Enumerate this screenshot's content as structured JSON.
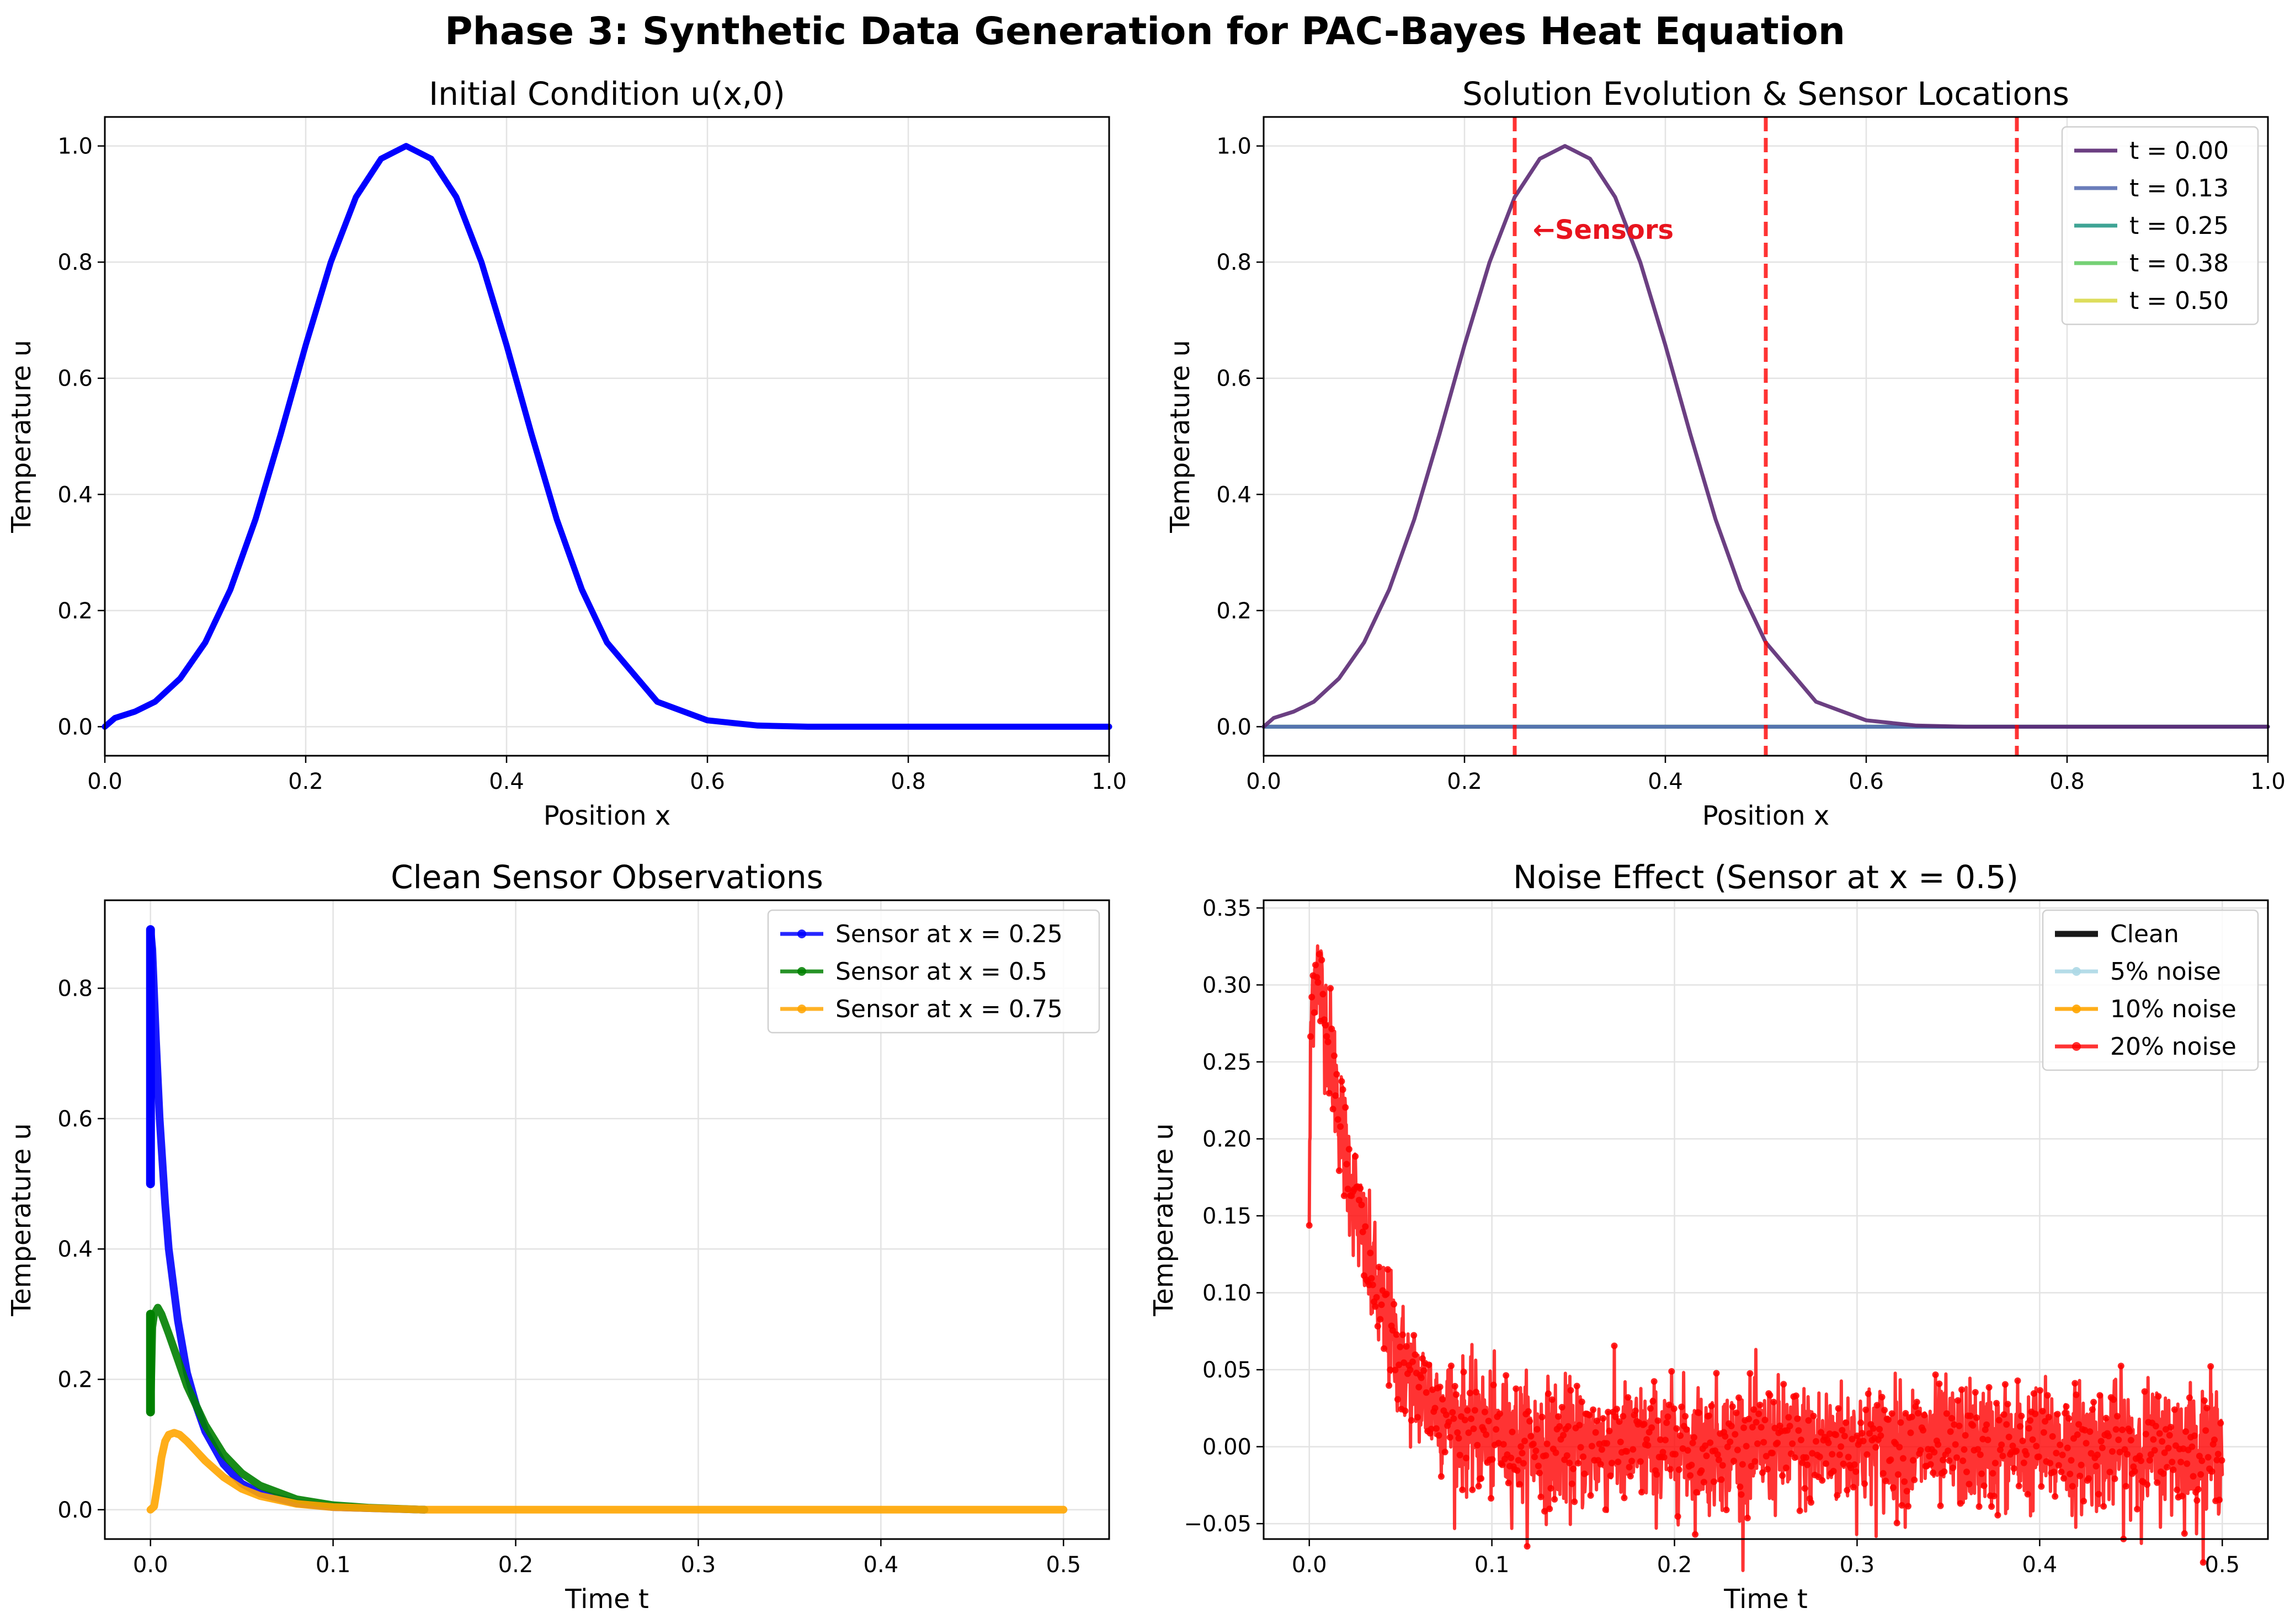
{
  "figure": {
    "title": "Phase 3: Synthetic Data Generation for PAC-Bayes Heat Equation"
  },
  "chart_data": [
    {
      "type": "line",
      "title": "Initial Condition u(x,0)",
      "xlabel": "Position x",
      "ylabel": "Temperature u",
      "xlim": [
        0,
        1
      ],
      "ylim": [
        -0.05,
        1.05
      ],
      "xticks": [
        "0.0",
        "0.2",
        "0.4",
        "0.6",
        "0.8",
        "1.0"
      ],
      "yticks": [
        "0.0",
        "0.2",
        "0.4",
        "0.6",
        "0.8",
        "1.0"
      ],
      "grid": true,
      "series": [
        {
          "color": "#0000ff",
          "x": [
            0,
            0.01,
            0.03,
            0.05,
            0.075,
            0.1,
            0.125,
            0.15,
            0.175,
            0.2,
            0.225,
            0.25,
            0.275,
            0.3,
            0.325,
            0.35,
            0.375,
            0.4,
            0.425,
            0.45,
            0.475,
            0.5,
            0.55,
            0.6,
            0.65,
            0.7,
            0.8,
            0.9,
            1.0
          ],
          "y": [
            0.0,
            0.015,
            0.026,
            0.043,
            0.083,
            0.145,
            0.236,
            0.357,
            0.503,
            0.657,
            0.8,
            0.912,
            0.978,
            1.0,
            0.978,
            0.912,
            0.8,
            0.657,
            0.503,
            0.357,
            0.236,
            0.145,
            0.043,
            0.011,
            0.002,
            0.0,
            0.0,
            0.0,
            0.0
          ]
        }
      ]
    },
    {
      "type": "line",
      "title": "Solution Evolution & Sensor Locations",
      "xlabel": "Position x",
      "ylabel": "Temperature u",
      "xlim": [
        0,
        1
      ],
      "ylim": [
        -0.05,
        1.05
      ],
      "xticks": [
        "0.0",
        "0.2",
        "0.4",
        "0.6",
        "0.8",
        "1.0"
      ],
      "yticks": [
        "0.0",
        "0.2",
        "0.4",
        "0.6",
        "0.8",
        "1.0"
      ],
      "grid": true,
      "legend": "top-right",
      "annotation": "←Sensors",
      "sensor_lines": [
        0.25,
        0.5,
        0.75
      ],
      "series": [
        {
          "name": "t = 0.00",
          "color": "#5b2a74",
          "x": [
            0,
            0.01,
            0.03,
            0.05,
            0.075,
            0.1,
            0.125,
            0.15,
            0.175,
            0.2,
            0.225,
            0.25,
            0.275,
            0.3,
            0.325,
            0.35,
            0.375,
            0.4,
            0.425,
            0.45,
            0.475,
            0.5,
            0.55,
            0.6,
            0.65,
            0.7,
            0.8,
            0.9,
            1.0
          ],
          "y": [
            0.0,
            0.015,
            0.026,
            0.043,
            0.083,
            0.145,
            0.236,
            0.357,
            0.503,
            0.657,
            0.8,
            0.912,
            0.978,
            1.0,
            0.978,
            0.912,
            0.8,
            0.657,
            0.503,
            0.357,
            0.236,
            0.145,
            0.043,
            0.011,
            0.002,
            0.0,
            0.0,
            0.0,
            0.0
          ]
        },
        {
          "name": "t = 0.13",
          "color": "#5a6fb3",
          "x": [
            0,
            1
          ],
          "y": [
            0,
            0
          ]
        },
        {
          "name": "t = 0.25",
          "color": "#2a9a8a",
          "x": [
            0,
            1
          ],
          "y": [
            0,
            0
          ]
        },
        {
          "name": "t = 0.38",
          "color": "#66cc66",
          "x": [
            0,
            1
          ],
          "y": [
            0,
            0
          ]
        },
        {
          "name": "t = 0.50",
          "color": "#d9d94a",
          "x": [
            0,
            1
          ],
          "y": [
            0,
            0
          ]
        }
      ]
    },
    {
      "type": "line",
      "title": "Clean Sensor Observations",
      "xlabel": "Time t",
      "ylabel": "Temperature u",
      "xlim": [
        -0.025,
        0.525
      ],
      "ylim": [
        -0.045,
        0.935
      ],
      "xticks": [
        "0.0",
        "0.1",
        "0.2",
        "0.3",
        "0.4",
        "0.5"
      ],
      "yticks": [
        "0.0",
        "0.2",
        "0.4",
        "0.6",
        "0.8"
      ],
      "grid": true,
      "legend": "top-right",
      "series": [
        {
          "name": "Sensor at x = 0.25",
          "color": "#0000ff",
          "x": [
            0,
            0.001,
            0.003,
            0.005,
            0.008,
            0.01,
            0.015,
            0.02,
            0.025,
            0.03,
            0.04,
            0.05,
            0.06,
            0.08,
            0.1,
            0.15
          ],
          "y": [
            0.89,
            0.86,
            0.72,
            0.6,
            0.47,
            0.4,
            0.29,
            0.21,
            0.16,
            0.12,
            0.07,
            0.04,
            0.025,
            0.01,
            0.004,
            0.0
          ]
        },
        {
          "name": "Sensor at x = 0.5",
          "color": "#008000",
          "x": [
            0,
            0.001,
            0.002,
            0.004,
            0.006,
            0.01,
            0.015,
            0.02,
            0.03,
            0.04,
            0.05,
            0.06,
            0.08,
            0.1,
            0.12,
            0.15
          ],
          "y": [
            0.15,
            0.28,
            0.3,
            0.31,
            0.3,
            0.27,
            0.23,
            0.19,
            0.13,
            0.085,
            0.056,
            0.037,
            0.016,
            0.007,
            0.003,
            0.0
          ]
        },
        {
          "name": "Sensor at x = 0.75",
          "color": "#ffa500",
          "x": [
            0,
            0.002,
            0.004,
            0.006,
            0.008,
            0.01,
            0.013,
            0.016,
            0.02,
            0.025,
            0.03,
            0.04,
            0.05,
            0.06,
            0.08,
            0.1,
            0.15,
            0.2,
            0.3,
            0.4,
            0.5
          ],
          "y": [
            0.0,
            0.005,
            0.04,
            0.08,
            0.105,
            0.115,
            0.118,
            0.115,
            0.105,
            0.09,
            0.075,
            0.05,
            0.032,
            0.021,
            0.009,
            0.004,
            0.0,
            0.0,
            0.0,
            0.0,
            0.0
          ]
        }
      ]
    },
    {
      "type": "line",
      "title": "Noise Effect (Sensor at x = 0.5)",
      "xlabel": "Time t",
      "ylabel": "Temperature u",
      "xlim": [
        -0.025,
        0.525
      ],
      "ylim": [
        -0.06,
        0.355
      ],
      "xticks": [
        "0.0",
        "0.1",
        "0.2",
        "0.3",
        "0.4",
        "0.5"
      ],
      "yticks": [
        "−0.05",
        "0.00",
        "0.05",
        "0.10",
        "0.15",
        "0.20",
        "0.25",
        "0.30",
        "0.35"
      ],
      "grid": true,
      "legend": "top-right",
      "noise_sd_20pct": 0.02,
      "series": [
        {
          "name": "Clean",
          "color": "#000000"
        },
        {
          "name": "5% noise",
          "color": "#add8e6"
        },
        {
          "name": "10% noise",
          "color": "#ffa500"
        },
        {
          "name": "20% noise",
          "color": "#ff0000"
        }
      ],
      "base_curve": {
        "x": [
          0,
          0.001,
          0.002,
          0.004,
          0.006,
          0.01,
          0.015,
          0.02,
          0.03,
          0.04,
          0.05,
          0.06,
          0.08,
          0.1,
          0.12,
          0.15,
          0.5
        ],
        "y": [
          0.15,
          0.28,
          0.3,
          0.31,
          0.3,
          0.27,
          0.23,
          0.19,
          0.13,
          0.085,
          0.056,
          0.037,
          0.016,
          0.007,
          0.003,
          0.0,
          0.0
        ]
      }
    }
  ]
}
